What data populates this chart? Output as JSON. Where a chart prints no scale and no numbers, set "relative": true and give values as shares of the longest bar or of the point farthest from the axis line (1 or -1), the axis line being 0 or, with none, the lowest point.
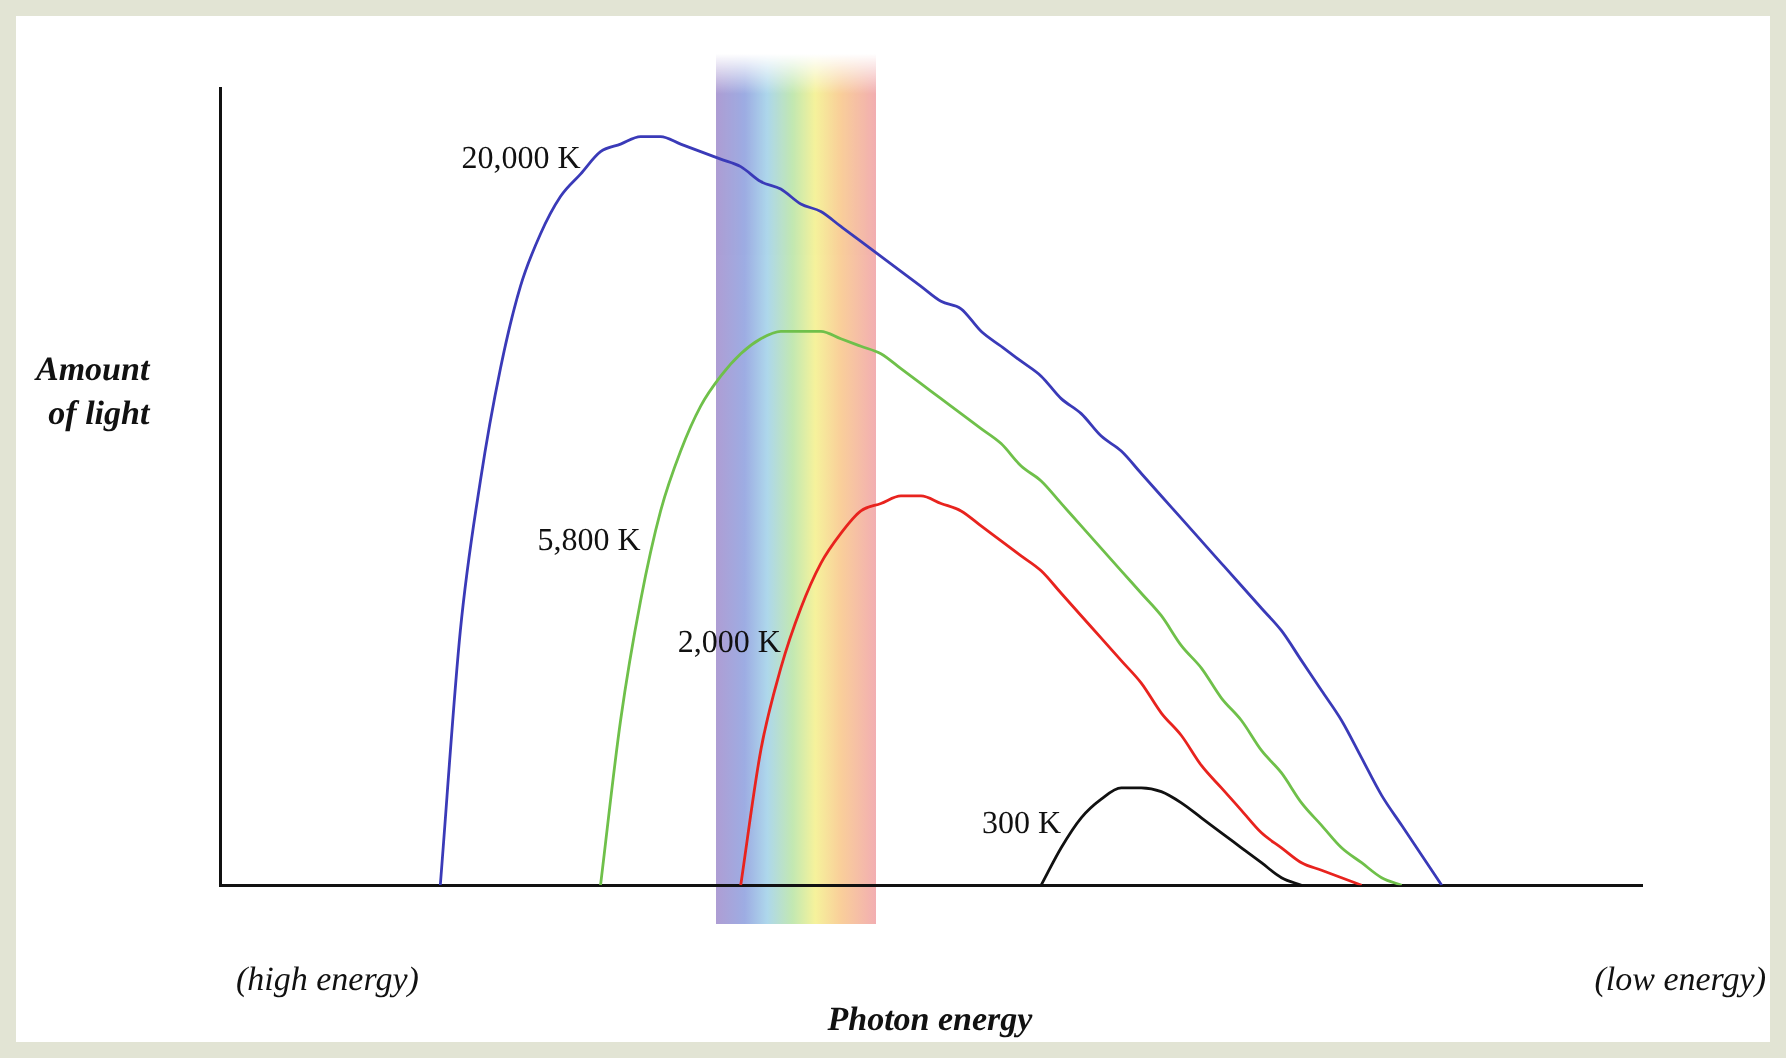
{
  "chart_data": {
    "type": "line",
    "relative": true,
    "xlabel": "Photon energy",
    "ylabel": "Amount\nof light",
    "grid": false,
    "legend": false,
    "marker": "none",
    "line_style": "solid",
    "annotations": [
      "(high energy)",
      "(low energy)"
    ],
    "categories": [
      null,
      null,
      null,
      null,
      null,
      null,
      null,
      null,
      null,
      null,
      null,
      null,
      null,
      null,
      null,
      null,
      null,
      null,
      null,
      null,
      null,
      null,
      null,
      null,
      null,
      null,
      null,
      null,
      null,
      null,
      null,
      null,
      null,
      null,
      null,
      null,
      null,
      null,
      null,
      null,
      null,
      null,
      null,
      null,
      null,
      null,
      null,
      null,
      null,
      null,
      null,
      null,
      null,
      null,
      null,
      null,
      null,
      null,
      null,
      null,
      null,
      null,
      null,
      null,
      null,
      null,
      null,
      null,
      null,
      null,
      null,
      null
    ],
    "series": [
      {
        "name": "20,000 K",
        "color": "#3a3ab8",
        "values": [
          null,
          null,
          null,
          null,
          null,
          null,
          null,
          null,
          null,
          null,
          null,
          0,
          0.34,
          0.54,
          0.69,
          0.8,
          0.87,
          0.92,
          0.95,
          0.98,
          0.99,
          1,
          1,
          0.99,
          0.98,
          0.97,
          0.96,
          0.94,
          0.93,
          0.91,
          0.9,
          0.88,
          0.86,
          0.84,
          0.82,
          0.8,
          0.78,
          0.77,
          0.74,
          0.72,
          0.7,
          0.68,
          0.65,
          0.63,
          0.6,
          0.58,
          0.55,
          0.52,
          0.49,
          0.46,
          0.43,
          0.4,
          0.37,
          0.34,
          0.3,
          0.26,
          0.22,
          0.17,
          0.12,
          0.08,
          0.04,
          0,
          null,
          null,
          null,
          null,
          null,
          null,
          null,
          null,
          null,
          null
        ]
      },
      {
        "name": "5,800 K",
        "color": "#6fc04a",
        "values": [
          null,
          null,
          null,
          null,
          null,
          null,
          null,
          null,
          null,
          null,
          null,
          null,
          null,
          null,
          null,
          null,
          null,
          null,
          null,
          0,
          0.22,
          0.38,
          0.5,
          0.58,
          0.64,
          0.68,
          0.71,
          0.73,
          0.74,
          0.74,
          0.74,
          0.73,
          0.72,
          0.71,
          0.69,
          0.67,
          0.65,
          0.63,
          0.61,
          0.59,
          0.56,
          0.54,
          0.51,
          0.48,
          0.45,
          0.42,
          0.39,
          0.36,
          0.32,
          0.29,
          0.25,
          0.22,
          0.18,
          0.15,
          0.11,
          0.08,
          0.05,
          0.03,
          0.01,
          0,
          null,
          null,
          null,
          null,
          null,
          null,
          null,
          null,
          null,
          null,
          null,
          null
        ]
      },
      {
        "name": "2,000 K",
        "color": "#e8231e",
        "values": [
          null,
          null,
          null,
          null,
          null,
          null,
          null,
          null,
          null,
          null,
          null,
          null,
          null,
          null,
          null,
          null,
          null,
          null,
          null,
          null,
          null,
          null,
          null,
          null,
          null,
          null,
          0,
          0.18,
          0.29,
          0.37,
          0.43,
          0.47,
          0.5,
          0.51,
          0.52,
          0.52,
          0.51,
          0.5,
          0.48,
          0.46,
          0.44,
          0.42,
          0.39,
          0.36,
          0.33,
          0.3,
          0.27,
          0.23,
          0.2,
          0.16,
          0.13,
          0.1,
          0.07,
          0.05,
          0.03,
          0.02,
          0.01,
          0,
          null,
          null,
          null,
          null,
          null,
          null,
          null,
          null,
          null,
          null,
          null,
          null,
          null,
          null
        ]
      },
      {
        "name": "300 K",
        "color": "#111111",
        "values": [
          null,
          null,
          null,
          null,
          null,
          null,
          null,
          null,
          null,
          null,
          null,
          null,
          null,
          null,
          null,
          null,
          null,
          null,
          null,
          null,
          null,
          null,
          null,
          null,
          null,
          null,
          null,
          null,
          null,
          null,
          null,
          null,
          null,
          null,
          null,
          null,
          null,
          null,
          null,
          null,
          null,
          0,
          0.05,
          0.09,
          0.115,
          0.13,
          0.13,
          0.125,
          0.11,
          0.09,
          0.07,
          0.05,
          0.03,
          0.01,
          0,
          null,
          null,
          null,
          null,
          null,
          null,
          null,
          null,
          null,
          null,
          null,
          null,
          null,
          null,
          null,
          null,
          null
        ]
      }
    ]
  }
}
